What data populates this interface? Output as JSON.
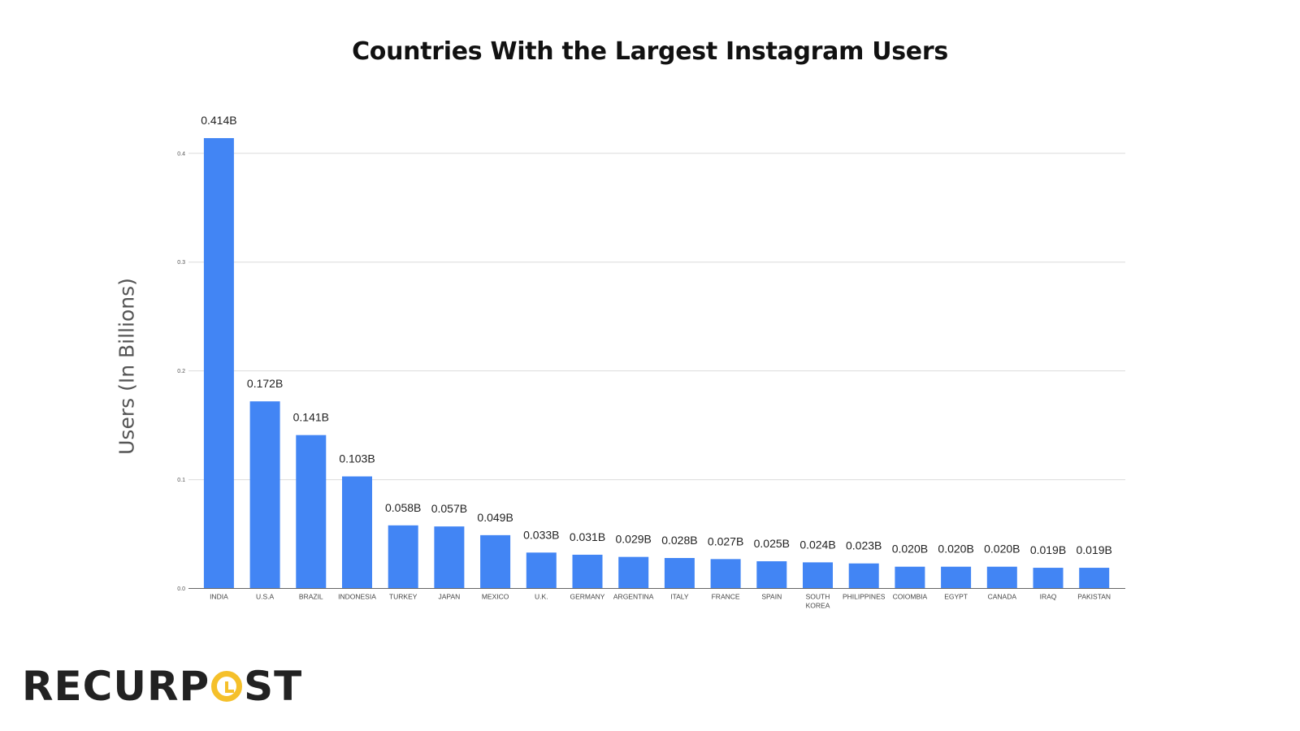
{
  "chart_data": {
    "type": "bar",
    "title": "Countries With the Largest Instagram Users",
    "xlabel": "",
    "ylabel": "Users (In Billions)",
    "ylim": [
      0,
      0.4
    ],
    "yticks": [
      "0.0",
      "0.1",
      "0.2",
      "0.3",
      "0.4"
    ],
    "grid": true,
    "bar_color": "#4285f4",
    "categories": [
      "INDIA",
      "U.S.A",
      "BRAZIL",
      "INDONESIA",
      "TURKEY",
      "JAPAN",
      "MEXICO",
      "U.K.",
      "GERMANY",
      "ARGENTINA",
      "ITALY",
      "FRANCE",
      "SPAIN",
      "SOUTH KOREA",
      "PHILIPPINES",
      "COIOMBIA",
      "EGYPT",
      "CANADA",
      "IRAQ",
      "PAKISTAN"
    ],
    "values": [
      0.414,
      0.172,
      0.141,
      0.103,
      0.058,
      0.057,
      0.049,
      0.033,
      0.031,
      0.029,
      0.028,
      0.027,
      0.025,
      0.024,
      0.023,
      0.02,
      0.02,
      0.02,
      0.019,
      0.019
    ],
    "data_labels": [
      "0.414B",
      "0.172B",
      "0.141B",
      "0.103B",
      "0.058B",
      "0.057B",
      "0.049B",
      "0.033B",
      "0.031B",
      "0.029B",
      "0.028B",
      "0.027B",
      "0.025B",
      "0.024B",
      "0.023B",
      "0.020B",
      "0.020B",
      "0.020B",
      "0.019B",
      "0.019B"
    ]
  },
  "logo": {
    "text_before": "RECURP",
    "text_after": "ST",
    "full": "RECURPOST",
    "accent": "#f5c02a"
  }
}
